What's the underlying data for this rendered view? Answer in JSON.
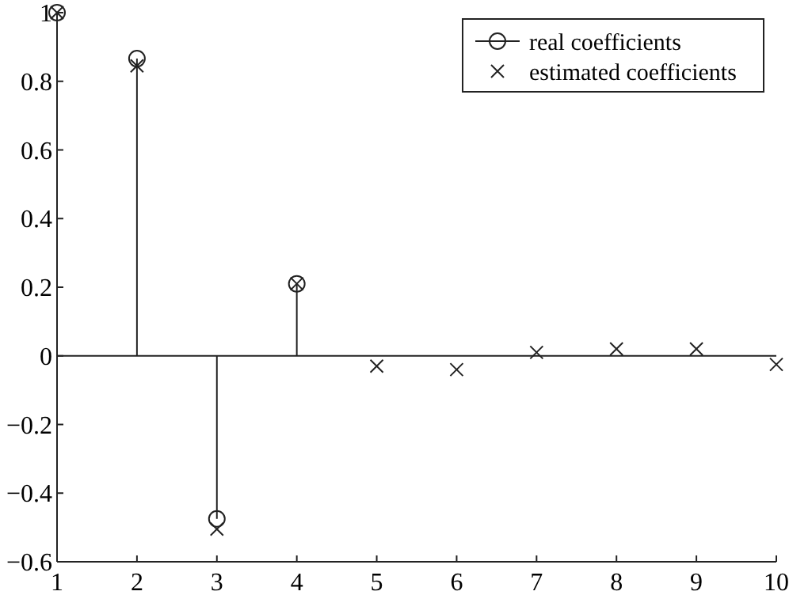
{
  "chart_data": {
    "type": "lollipop",
    "x": [
      1,
      2,
      3,
      4,
      5,
      6,
      7,
      8,
      9,
      10
    ],
    "series": [
      {
        "name": "real coefficients",
        "color": "#222222",
        "marker": "circle",
        "values": [
          1,
          0.866,
          -0.475,
          0.21,
          null,
          null,
          null,
          null,
          null,
          null
        ]
      },
      {
        "name": "estimated coefficients",
        "type": "scatter",
        "color": "#222222",
        "marker": "cross",
        "values": [
          1,
          0.845,
          -0.505,
          0.21,
          -0.03,
          -0.04,
          0.01,
          0.02,
          0.02,
          -0.025
        ]
      }
    ],
    "xlim": [
      1,
      10
    ],
    "xticks": [
      1,
      2,
      3,
      4,
      5,
      6,
      7,
      8,
      9,
      10
    ],
    "ylim": [
      -0.6,
      1
    ],
    "yticks": [
      -0.6,
      -0.4,
      -0.2,
      0,
      0.2,
      0.4,
      0.6,
      0.8,
      1
    ],
    "legend": "top right"
  }
}
